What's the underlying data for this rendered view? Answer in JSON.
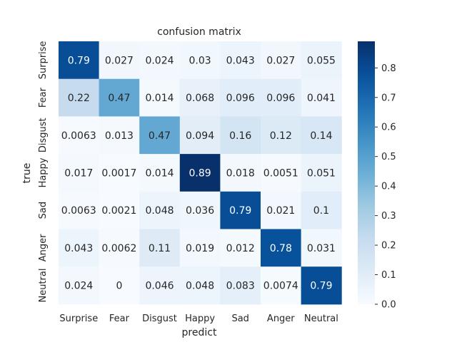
{
  "chart_data": {
    "type": "heatmap",
    "title": "confusion matrix",
    "xlabel": "predict",
    "ylabel": "true",
    "x_categories": [
      "Surprise",
      "Fear",
      "Disgust",
      "Happy",
      "Sad",
      "Anger",
      "Neutral"
    ],
    "y_categories": [
      "Surprise",
      "Fear",
      "Disgust",
      "Happy",
      "Sad",
      "Anger",
      "Neutral"
    ],
    "values": [
      [
        0.79,
        0.027,
        0.024,
        0.03,
        0.043,
        0.027,
        0.055
      ],
      [
        0.22,
        0.47,
        0.014,
        0.068,
        0.096,
        0.096,
        0.041
      ],
      [
        0.0063,
        0.013,
        0.47,
        0.094,
        0.16,
        0.12,
        0.14
      ],
      [
        0.017,
        0.0017,
        0.014,
        0.89,
        0.018,
        0.0051,
        0.051
      ],
      [
        0.0063,
        0.0021,
        0.048,
        0.036,
        0.79,
        0.021,
        0.1
      ],
      [
        0.043,
        0.0062,
        0.11,
        0.019,
        0.012,
        0.78,
        0.031
      ],
      [
        0.024,
        0,
        0.046,
        0.048,
        0.083,
        0.0074,
        0.79
      ]
    ],
    "value_labels": [
      [
        "0.79",
        "0.027",
        "0.024",
        "0.03",
        "0.043",
        "0.027",
        "0.055"
      ],
      [
        "0.22",
        "0.47",
        "0.014",
        "0.068",
        "0.096",
        "0.096",
        "0.041"
      ],
      [
        "0.0063",
        "0.013",
        "0.47",
        "0.094",
        "0.16",
        "0.12",
        "0.14"
      ],
      [
        "0.017",
        "0.0017",
        "0.014",
        "0.89",
        "0.018",
        "0.0051",
        "0.051"
      ],
      [
        "0.0063",
        "0.0021",
        "0.048",
        "0.036",
        "0.79",
        "0.021",
        "0.1"
      ],
      [
        "0.043",
        "0.0062",
        "0.11",
        "0.019",
        "0.012",
        "0.78",
        "0.031"
      ],
      [
        "0.024",
        "0",
        "0.046",
        "0.048",
        "0.083",
        "0.0074",
        "0.79"
      ]
    ],
    "colorbar": {
      "colormap": "Blues",
      "range": [
        0.0,
        0.89
      ],
      "ticks": [
        "0.0",
        "0.1",
        "0.2",
        "0.3",
        "0.4",
        "0.5",
        "0.6",
        "0.7",
        "0.8"
      ]
    }
  }
}
